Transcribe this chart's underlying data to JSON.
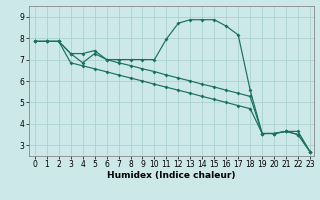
{
  "bg_color": "#cce8e8",
  "grid_color": "#aacfcf",
  "line_color": "#1a7060",
  "xlabel": "Humidex (Indice chaleur)",
  "line1_x": [
    0,
    1,
    2,
    3,
    4,
    5,
    6,
    7,
    8,
    9,
    10,
    11,
    12,
    13,
    14,
    15,
    16,
    17,
    18,
    19,
    20,
    21,
    22,
    23
  ],
  "line1_y": [
    7.85,
    7.85,
    7.85,
    7.28,
    7.28,
    7.42,
    7.0,
    7.0,
    7.0,
    7.0,
    7.0,
    7.96,
    8.7,
    8.86,
    8.86,
    8.86,
    8.56,
    8.15,
    5.57,
    3.55,
    3.55,
    3.65,
    3.65,
    2.7
  ],
  "line2_x": [
    0,
    1,
    2,
    3,
    4,
    5,
    6,
    7,
    8,
    9,
    10,
    11,
    12,
    13,
    14,
    15,
    16,
    17,
    18,
    19,
    20,
    21,
    22,
    23
  ],
  "line2_y": [
    7.85,
    7.85,
    7.85,
    7.28,
    6.85,
    7.28,
    7.0,
    6.85,
    6.72,
    6.57,
    6.44,
    6.28,
    6.14,
    6.0,
    5.85,
    5.72,
    5.57,
    5.43,
    5.28,
    3.55,
    3.55,
    3.65,
    3.5,
    2.7
  ],
  "line3_x": [
    0,
    1,
    2,
    3,
    4,
    5,
    6,
    7,
    8,
    9,
    10,
    11,
    12,
    13,
    14,
    15,
    16,
    17,
    18,
    19,
    20,
    21,
    22,
    23
  ],
  "line3_y": [
    7.85,
    7.85,
    7.85,
    6.85,
    6.71,
    6.57,
    6.43,
    6.28,
    6.14,
    6.0,
    5.85,
    5.71,
    5.57,
    5.43,
    5.28,
    5.14,
    5.0,
    4.85,
    4.71,
    3.55,
    3.55,
    3.65,
    3.5,
    2.7
  ],
  "xlim": [
    -0.5,
    23.3
  ],
  "ylim": [
    2.5,
    9.5
  ],
  "xticks": [
    0,
    1,
    2,
    3,
    4,
    5,
    6,
    7,
    8,
    9,
    10,
    11,
    12,
    13,
    14,
    15,
    16,
    17,
    18,
    19,
    20,
    21,
    22,
    23
  ],
  "yticks": [
    3,
    4,
    5,
    6,
    7,
    8,
    9
  ],
  "tick_fontsize": 5.5,
  "xlabel_fontsize": 6.5
}
